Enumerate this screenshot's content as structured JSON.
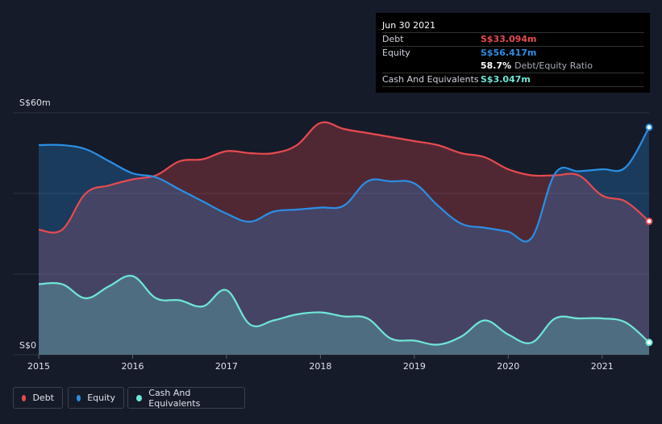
{
  "tooltip": {
    "date": "Jun 30 2021",
    "debt_label": "Debt",
    "debt_value": "S$33.094m",
    "equity_label": "Equity",
    "equity_value": "S$56.417m",
    "ratio_value": "58.7%",
    "ratio_label": "Debt/Equity Ratio",
    "cash_label": "Cash And Equivalents",
    "cash_value": "S$3.047m"
  },
  "colors": {
    "debt": "#e84a4f",
    "equity": "#2a8fe6",
    "cash": "#6ee6d6",
    "background": "#151b29"
  },
  "legend": {
    "debt": "Debt",
    "equity": "Equity",
    "cash": "Cash And Equivalents"
  },
  "chart_data": {
    "type": "area",
    "title": "",
    "xlabel": "",
    "ylabel": "",
    "ylim": [
      0,
      60
    ],
    "y_tick_labels": [
      "S$0",
      "S$60m"
    ],
    "x_tick_labels": [
      "2015",
      "2016",
      "2017",
      "2018",
      "2019",
      "2020",
      "2021"
    ],
    "xlim": [
      2015.0,
      2021.5
    ],
    "x": [
      2015.0,
      2015.25,
      2015.5,
      2015.75,
      2016.0,
      2016.25,
      2016.5,
      2016.75,
      2017.0,
      2017.25,
      2017.5,
      2017.75,
      2018.0,
      2018.25,
      2018.5,
      2018.75,
      2019.0,
      2019.25,
      2019.5,
      2019.75,
      2020.0,
      2020.25,
      2020.5,
      2020.75,
      2021.0,
      2021.25,
      2021.5
    ],
    "series": [
      {
        "name": "Debt",
        "values": [
          31.0,
          31.0,
          40.0,
          42.0,
          43.5,
          44.5,
          48.0,
          48.5,
          50.5,
          50.0,
          50.0,
          52.0,
          57.5,
          56.0,
          55.0,
          54.0,
          53.0,
          52.0,
          50.0,
          49.0,
          46.0,
          44.5,
          44.5,
          44.5,
          39.5,
          38.0,
          33.094
        ]
      },
      {
        "name": "Equity",
        "values": [
          52.0,
          52.0,
          51.0,
          48.0,
          45.0,
          44.0,
          41.0,
          38.0,
          35.0,
          33.0,
          35.5,
          36.0,
          36.5,
          37.0,
          43.0,
          43.0,
          42.5,
          37.0,
          32.5,
          31.5,
          30.5,
          29.0,
          45.0,
          45.5,
          46.0,
          46.5,
          56.417
        ]
      },
      {
        "name": "Cash And Equivalents",
        "values": [
          17.5,
          17.5,
          14.0,
          17.0,
          19.5,
          14.0,
          13.5,
          12.0,
          16.0,
          7.5,
          8.5,
          10.0,
          10.5,
          9.5,
          9.0,
          4.0,
          3.5,
          2.5,
          4.5,
          8.5,
          5.0,
          3.0,
          9.0,
          9.0,
          9.0,
          8.0,
          3.047
        ]
      }
    ]
  }
}
